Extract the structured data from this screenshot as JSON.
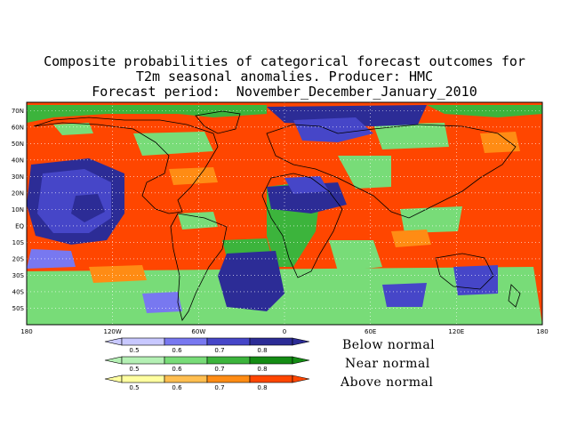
{
  "title": {
    "line1": "Composite probabilities of categorical forecast outcomes for",
    "line2": "T2m seasonal anomalies. Producer: HMC",
    "line3": "Forecast period:  November_December_January_2010"
  },
  "map": {
    "projection": "equirectangular",
    "lon_range": [
      -180,
      180
    ],
    "lat_range": [
      -60,
      75
    ],
    "lat_labels": [
      "70N",
      "60N",
      "50N",
      "40N",
      "30N",
      "20N",
      "10N",
      "EQ",
      "10S",
      "20S",
      "30S",
      "40S",
      "50S"
    ],
    "lon_labels": [
      "180",
      "120W",
      "60W",
      "0",
      "60E",
      "120E",
      "180"
    ]
  },
  "legend": {
    "thresholds": [
      "0.5",
      "0.6",
      "0.7",
      "0.8"
    ],
    "categories": [
      {
        "name": "Below normal",
        "colors": [
          "#c8c8ff",
          "#7878f0",
          "#4646c8",
          "#2c2c96"
        ]
      },
      {
        "name": "Near normal",
        "colors": [
          "#b4f0b4",
          "#78dc78",
          "#3cb43c",
          "#148c14"
        ]
      },
      {
        "name": "Above normal",
        "colors": [
          "#ffffa0",
          "#ffbe50",
          "#ff8c14",
          "#ff4600"
        ]
      }
    ]
  }
}
